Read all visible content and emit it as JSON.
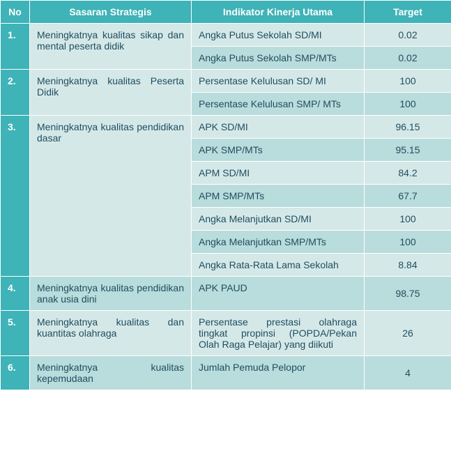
{
  "table": {
    "headers": {
      "no": "No",
      "sasaran": "Sasaran Strategis",
      "indikator": "Indikator Kinerja Utama",
      "target": "Target"
    },
    "colors": {
      "header_bg": "#3eb3b8",
      "header_text": "#ffffff",
      "body_text": "#1f4e5f",
      "row_light": "#d5e8e8",
      "row_dark": "#b9dcdc",
      "border": "#ffffff"
    },
    "rows": [
      {
        "no": "1.",
        "sasaran": "Meningkatnya kualitas sikap dan mental peserta didik",
        "items": [
          {
            "indikator": "Angka Putus Sekolah SD/MI",
            "target": "0.02",
            "shade": "light",
            "align": "justify"
          },
          {
            "indikator": "Angka Putus Sekolah SMP/MTs",
            "target": "0.02",
            "shade": "dark",
            "align": "justify"
          }
        ]
      },
      {
        "no": "2.",
        "sasaran": "Meningkatnya kualitas Peserta Didik",
        "items": [
          {
            "indikator": "Persentase Kelulusan SD/ MI",
            "target": "100",
            "shade": "light",
            "align": "justify"
          },
          {
            "indikator": "Persentase Kelulusan SMP/ MTs",
            "target": "100",
            "shade": "dark",
            "align": "justify"
          }
        ]
      },
      {
        "no": "3.",
        "sasaran": "Meningkatnya kualitas pendidikan dasar",
        "items": [
          {
            "indikator": "APK SD/MI",
            "target": "96.15",
            "shade": "light",
            "align": "left"
          },
          {
            "indikator": "APK SMP/MTs",
            "target": "95.15",
            "shade": "dark",
            "align": "left"
          },
          {
            "indikator": "APM SD/MI",
            "target": "84.2",
            "shade": "light",
            "align": "left"
          },
          {
            "indikator": "APM SMP/MTs",
            "target": "67.7",
            "shade": "dark",
            "align": "left"
          },
          {
            "indikator": "Angka Melanjutkan SD/MI",
            "target": "100",
            "shade": "light",
            "align": "left"
          },
          {
            "indikator": "Angka Melanjutkan SMP/MTs",
            "target": "100",
            "shade": "dark",
            "align": "left"
          },
          {
            "indikator": "Angka Rata-Rata Lama Sekolah",
            "target": "8.84",
            "shade": "light",
            "align": "left"
          }
        ]
      },
      {
        "no": "4.",
        "sasaran": "Meningkatnya kualitas pendidikan anak usia dini",
        "items": [
          {
            "indikator": "APK PAUD",
            "target": "98.75",
            "shade": "dark",
            "align": "left"
          }
        ]
      },
      {
        "no": "5.",
        "sasaran": "Meningkatnya kualitas dan kuantitas olahraga",
        "items": [
          {
            "indikator": "Persentase prestasi olahraga tingkat propinsi (POPDA/Pekan Olah Raga Pelajar) yang diikuti",
            "target": "26",
            "shade": "light",
            "align": "justify"
          }
        ]
      },
      {
        "no": "6.",
        "sasaran": "Meningkatnya kualitas kepemudaan",
        "items": [
          {
            "indikator": "Jumlah Pemuda Pelopor",
            "target": "4",
            "shade": "dark",
            "align": "left"
          }
        ]
      }
    ]
  }
}
